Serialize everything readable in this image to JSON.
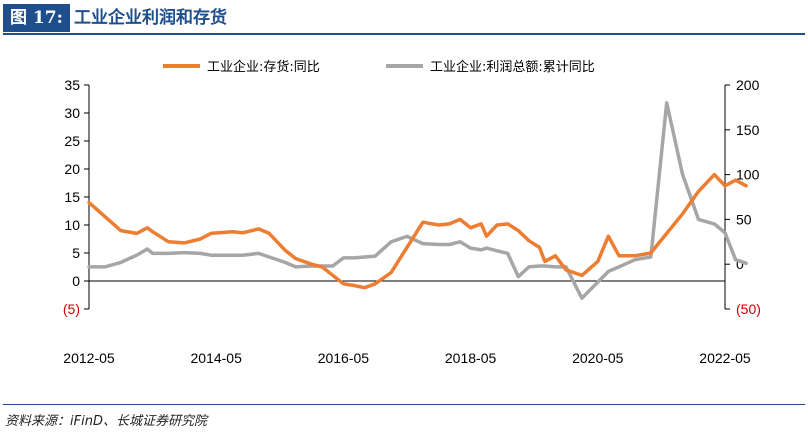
{
  "figure": {
    "number_label": "图 17:",
    "title": "工业企业利润和存货",
    "source": "资料来源：iFinD、长城证券研究院"
  },
  "colors": {
    "inventory": "#ed7d31",
    "profit": "#a6a6a6",
    "header": "#1f4e8c",
    "negative_label": "#cc0000"
  },
  "chart_data": {
    "type": "line",
    "title": "工业企业利润和存货",
    "legend_position": "top",
    "grid": false,
    "x_range": [
      "2012-05",
      "2022-05"
    ],
    "x_tick_labels": [
      "2012-05",
      "2014-05",
      "2016-05",
      "2018-05",
      "2020-05",
      "2022-05"
    ],
    "y_left": {
      "min": -5,
      "max": 35,
      "ticks": [
        "35",
        "30",
        "25",
        "20",
        "15",
        "10",
        "5",
        "0",
        "(5)"
      ],
      "tick_values": [
        35,
        30,
        25,
        20,
        15,
        10,
        5,
        0,
        -5
      ]
    },
    "y_right": {
      "min": -50,
      "max": 200,
      "ticks": [
        "200",
        "150",
        "100",
        "50",
        "0",
        "(50)"
      ],
      "tick_values": [
        200,
        150,
        100,
        50,
        0,
        -50
      ]
    },
    "series": [
      {
        "name": "工业企业:存货:同比",
        "axis": "left",
        "points": [
          [
            "2012-05",
            14.0
          ],
          [
            "2012-08",
            11.5
          ],
          [
            "2012-11",
            9.0
          ],
          [
            "2013-02",
            8.5
          ],
          [
            "2013-04",
            9.5
          ],
          [
            "2013-05",
            8.8
          ],
          [
            "2013-08",
            7.0
          ],
          [
            "2013-11",
            6.8
          ],
          [
            "2014-02",
            7.5
          ],
          [
            "2014-04",
            8.5
          ],
          [
            "2014-08",
            8.8
          ],
          [
            "2014-10",
            8.6
          ],
          [
            "2015-01",
            9.3
          ],
          [
            "2015-03",
            8.5
          ],
          [
            "2015-06",
            5.5
          ],
          [
            "2015-08",
            4.0
          ],
          [
            "2015-11",
            3.0
          ],
          [
            "2016-01",
            2.5
          ],
          [
            "2016-03",
            1.0
          ],
          [
            "2016-05",
            -0.5
          ],
          [
            "2016-07",
            -0.8
          ],
          [
            "2016-09",
            -1.2
          ],
          [
            "2016-11",
            -0.5
          ],
          [
            "2017-02",
            1.5
          ],
          [
            "2017-05",
            6.0
          ],
          [
            "2017-08",
            10.5
          ],
          [
            "2017-11",
            10.0
          ],
          [
            "2018-01",
            10.2
          ],
          [
            "2018-03",
            11.0
          ],
          [
            "2018-05",
            9.5
          ],
          [
            "2018-07",
            10.2
          ],
          [
            "2018-08",
            8.0
          ],
          [
            "2018-10",
            10.0
          ],
          [
            "2018-12",
            10.2
          ],
          [
            "2019-02",
            9.0
          ],
          [
            "2019-04",
            7.2
          ],
          [
            "2019-06",
            6.0
          ],
          [
            "2019-07",
            3.5
          ],
          [
            "2019-09",
            4.5
          ],
          [
            "2019-11",
            2.0
          ],
          [
            "2020-02",
            1.0
          ],
          [
            "2020-05",
            3.5
          ],
          [
            "2020-07",
            8.0
          ],
          [
            "2020-09",
            4.5
          ],
          [
            "2020-12",
            4.5
          ],
          [
            "2021-03",
            5.0
          ],
          [
            "2021-06",
            8.5
          ],
          [
            "2021-09",
            12.0
          ],
          [
            "2021-12",
            16.0
          ],
          [
            "2022-03",
            19.0
          ],
          [
            "2022-05",
            17.0
          ],
          [
            "2022-07",
            18.0
          ],
          [
            "2022-09",
            17.0
          ]
        ]
      },
      {
        "name": "工业企业:利润总额:累计同比",
        "axis": "right",
        "points": [
          [
            "2012-05",
            -3
          ],
          [
            "2012-08",
            -3
          ],
          [
            "2012-11",
            2
          ],
          [
            "2013-02",
            10
          ],
          [
            "2013-04",
            17
          ],
          [
            "2013-05",
            12
          ],
          [
            "2013-08",
            12
          ],
          [
            "2013-11",
            13
          ],
          [
            "2014-02",
            12
          ],
          [
            "2014-04",
            10
          ],
          [
            "2014-08",
            10
          ],
          [
            "2014-10",
            10
          ],
          [
            "2015-01",
            12
          ],
          [
            "2015-03",
            8
          ],
          [
            "2015-06",
            2
          ],
          [
            "2015-08",
            -3
          ],
          [
            "2015-11",
            -2
          ],
          [
            "2016-01",
            -2
          ],
          [
            "2016-03",
            -2
          ],
          [
            "2016-05",
            7
          ],
          [
            "2016-07",
            7
          ],
          [
            "2016-09",
            8
          ],
          [
            "2016-11",
            9
          ],
          [
            "2017-02",
            25
          ],
          [
            "2017-05",
            31
          ],
          [
            "2017-08",
            23
          ],
          [
            "2017-11",
            22
          ],
          [
            "2018-01",
            22
          ],
          [
            "2018-03",
            25
          ],
          [
            "2018-05",
            18
          ],
          [
            "2018-07",
            16
          ],
          [
            "2018-08",
            18
          ],
          [
            "2018-10",
            15
          ],
          [
            "2018-12",
            12
          ],
          [
            "2019-02",
            -14
          ],
          [
            "2019-04",
            -3
          ],
          [
            "2019-06",
            -2
          ],
          [
            "2019-07",
            -2
          ],
          [
            "2019-09",
            -3
          ],
          [
            "2019-11",
            -3
          ],
          [
            "2020-02",
            -38
          ],
          [
            "2020-05",
            -20
          ],
          [
            "2020-07",
            -8
          ],
          [
            "2020-09",
            -3
          ],
          [
            "2020-12",
            5
          ],
          [
            "2021-03",
            8
          ],
          [
            "2021-06",
            180
          ],
          [
            "2021-09",
            100
          ],
          [
            "2021-12",
            50
          ],
          [
            "2022-03",
            45
          ],
          [
            "2022-05",
            35
          ],
          [
            "2022-07",
            5
          ],
          [
            "2022-09",
            1
          ]
        ]
      }
    ]
  }
}
